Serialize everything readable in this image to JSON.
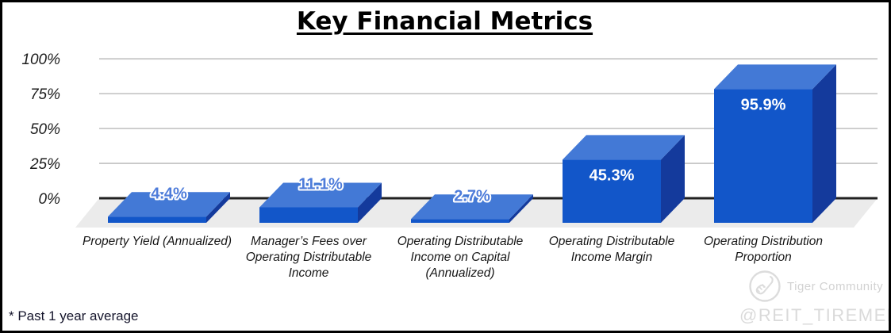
{
  "title": "Key Financial Metrics",
  "footnote": "* Past 1 year average",
  "watermark": {
    "logo": "tiger-community-logo",
    "community": "Tiger Community",
    "handle": "@REIT_TIREMENT"
  },
  "chart_data": {
    "type": "bar",
    "style": "3d",
    "title": "Key Financial Metrics",
    "xlabel": "",
    "ylabel": "",
    "categories": [
      "Property Yield (Annualized)",
      "Manager’s Fees over Operating Distributable Income",
      "Operating Distributable Income on Capital (Annualized)",
      "Operating Distributable Income Margin",
      "Operating Distribution Proportion"
    ],
    "values": [
      4.4,
      11.1,
      2.7,
      45.3,
      95.9
    ],
    "labels": [
      "4.4%",
      "11.1%",
      "2.7%",
      "45.3%",
      "95.9%"
    ],
    "ylim": [
      0,
      100
    ],
    "yticks": [
      "100%",
      "75%",
      "50%",
      "25%",
      "0%"
    ],
    "ytick_values": [
      100,
      75,
      50,
      25,
      0
    ],
    "grid": true,
    "legend": "none",
    "colors": {
      "bar_front": "#1256c9",
      "bar_top": "#4379d6",
      "bar_side": "#143a9c",
      "floor": "#ebebeb",
      "gridline": "#c8c8c8",
      "axis_line": "#212121",
      "label_inside": "#ffffff",
      "label_outside_fill": "#4e7cda",
      "label_outline": "#ffffff"
    }
  }
}
